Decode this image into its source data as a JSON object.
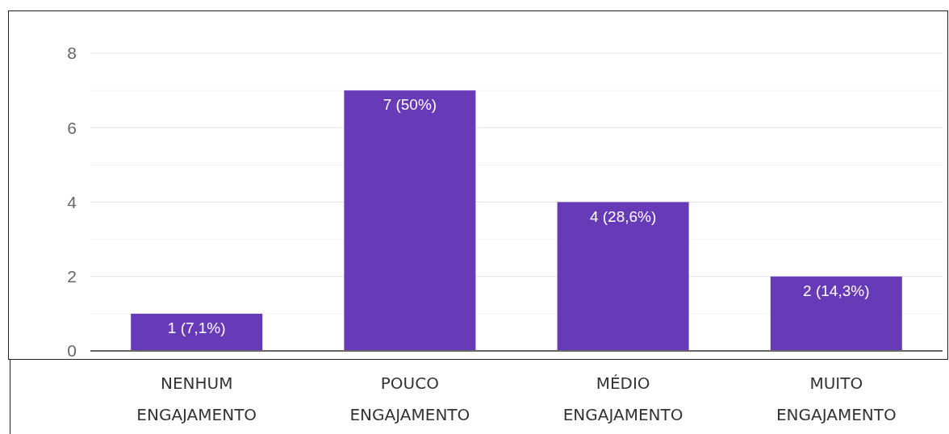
{
  "chart_data": {
    "type": "bar",
    "categories": [
      "NENHUM ENGAJAMENTO",
      "POUCO ENGAJAMENTO",
      "MÉDIO ENGAJAMENTO",
      "MUITO ENGAJAMENTO"
    ],
    "values": [
      1,
      7,
      4,
      2
    ],
    "value_labels": [
      "1 (7,1%)",
      "7 (50%)",
      "4 (28,6%)",
      "2 (14,3%)"
    ],
    "color": "#673ab7",
    "ylim": [
      0,
      8
    ],
    "yticks": [
      0,
      {
        "value": 1,
        "label": null
      },
      2,
      {
        "value": 3,
        "label": null
      },
      4,
      {
        "value": 5,
        "label": null
      },
      6,
      {
        "value": 7,
        "label": null
      },
      8
    ],
    "grid": true
  }
}
